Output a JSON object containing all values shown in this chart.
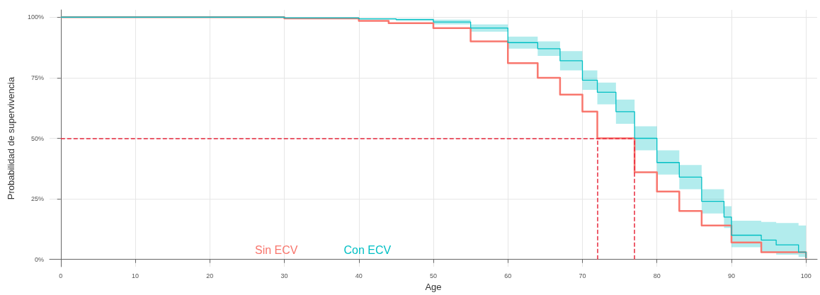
{
  "chart_data": {
    "type": "step",
    "xlabel": "Age",
    "ylabel": "Probabilidad de supervivencia",
    "xlim": [
      -1.5,
      101.5
    ],
    "ylim": [
      -3,
      103
    ],
    "xticks": [
      0,
      10,
      20,
      30,
      40,
      50,
      60,
      70,
      80,
      90,
      100
    ],
    "yticks": [
      {
        "value": 0,
        "label": "0%"
      },
      {
        "value": 25,
        "label": "25%"
      },
      {
        "value": 50,
        "label": "50%"
      },
      {
        "value": 75,
        "label": "75%"
      },
      {
        "value": 100,
        "label": "100%"
      }
    ],
    "grid": true,
    "legend": "bottom",
    "marker": "none",
    "series": [
      {
        "name": "Sin ECV",
        "color": "#f8766d",
        "x": [
          0,
          30,
          40,
          44,
          50,
          55,
          60,
          64,
          67,
          70,
          72,
          77,
          80,
          83,
          86,
          90,
          94,
          100
        ],
        "values": [
          100,
          99.5,
          98.5,
          97.5,
          95.5,
          90,
          81,
          75,
          68,
          61,
          50,
          36,
          28,
          20,
          14,
          7,
          3,
          0.3
        ]
      },
      {
        "name": "Con ECV",
        "color": "#00bfc4",
        "x": [
          0,
          30,
          40,
          45,
          50,
          55,
          60,
          64,
          67,
          70,
          72,
          74.5,
          77,
          80,
          83,
          86,
          89,
          90,
          94,
          96,
          99,
          100
        ],
        "values": [
          100,
          99.7,
          99.3,
          99,
          98,
          95.5,
          89.5,
          87,
          82,
          74,
          69,
          61,
          50,
          40,
          34,
          24,
          17.5,
          10,
          8,
          6,
          3,
          0.5
        ],
        "lower": [
          100,
          99.5,
          99,
          98.5,
          97,
          94,
          87,
          84,
          78,
          70,
          64,
          56,
          45,
          35,
          29,
          19,
          13,
          5,
          3,
          2,
          1,
          0.5
        ],
        "upper": [
          100,
          99.9,
          99.6,
          99.4,
          99,
          97,
          92,
          90,
          86,
          78,
          73,
          66,
          55,
          45,
          39,
          29,
          22,
          16,
          15.5,
          15,
          14,
          0.5
        ]
      }
    ],
    "ref_lines": [
      {
        "axis": "y",
        "value": 50,
        "color": "#e8283c",
        "line_style": "dashed"
      },
      {
        "axis": "x",
        "value": 72,
        "color": "#e8283c",
        "line_style": "dashed"
      },
      {
        "axis": "x",
        "value": 77,
        "color": "#e8283c",
        "line_style": "dashed"
      }
    ]
  }
}
